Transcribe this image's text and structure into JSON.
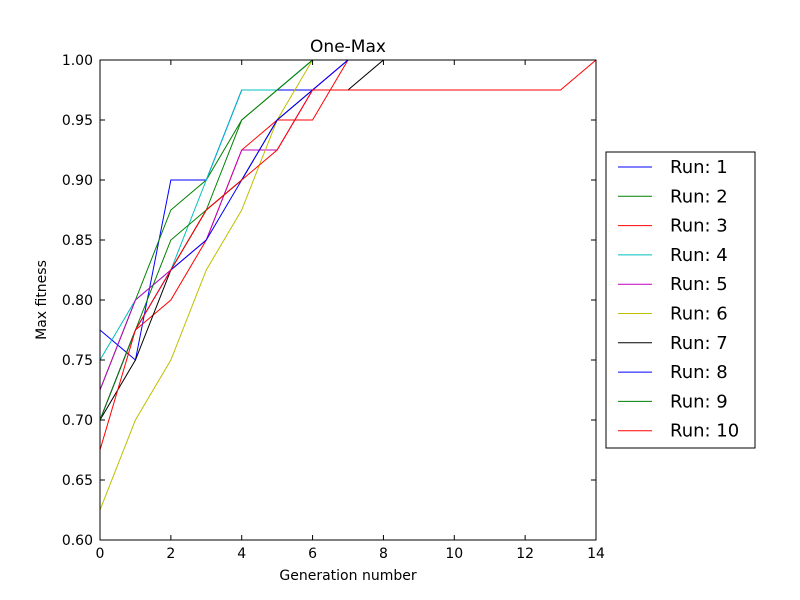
{
  "chart_data": {
    "type": "line",
    "title": "One-Max",
    "xlabel": "Generation number",
    "ylabel": "Max fitness",
    "xlim": [
      0,
      14
    ],
    "ylim": [
      0.6,
      1.0
    ],
    "xticks": [
      0,
      2,
      4,
      6,
      8,
      10,
      12,
      14
    ],
    "xtick_labels": [
      "0",
      "2",
      "4",
      "6",
      "8",
      "10",
      "12",
      "14"
    ],
    "yticks": [
      0.6,
      0.65,
      0.7,
      0.75,
      0.8,
      0.85,
      0.9,
      0.95,
      1.0
    ],
    "ytick_labels": [
      "0.60",
      "0.65",
      "0.70",
      "0.75",
      "0.80",
      "0.85",
      "0.90",
      "0.95",
      "1.00"
    ],
    "grid": false,
    "legend_position": "outside-right",
    "series": [
      {
        "name": "Run: 1",
        "color": "#0000ff",
        "x": [
          0,
          1,
          2,
          3,
          4,
          5,
          6,
          7
        ],
        "y": [
          0.775,
          0.75,
          0.9,
          0.9,
          0.975,
          0.975,
          0.975,
          1.0
        ]
      },
      {
        "name": "Run: 2",
        "color": "#008000",
        "x": [
          0,
          1,
          2,
          3,
          4,
          5,
          6
        ],
        "y": [
          0.725,
          0.8,
          0.875,
          0.9,
          0.95,
          0.975,
          1.0
        ]
      },
      {
        "name": "Run: 3",
        "color": "#ff0000",
        "x": [
          0,
          1,
          2,
          3,
          4,
          5,
          6,
          7
        ],
        "y": [
          0.7,
          0.775,
          0.8,
          0.85,
          0.925,
          0.95,
          0.95,
          1.0
        ]
      },
      {
        "name": "Run: 4",
        "color": "#00bfbf",
        "x": [
          0,
          1,
          2,
          3,
          4,
          5,
          6
        ],
        "y": [
          0.75,
          0.8,
          0.825,
          0.9,
          0.975,
          0.975,
          1.0
        ]
      },
      {
        "name": "Run: 5",
        "color": "#bf00bf",
        "x": [
          0,
          1,
          2,
          3,
          4,
          5,
          6,
          7
        ],
        "y": [
          0.725,
          0.8,
          0.825,
          0.85,
          0.925,
          0.925,
          0.975,
          1.0
        ]
      },
      {
        "name": "Run: 6",
        "color": "#bfbf00",
        "x": [
          0,
          1,
          2,
          3,
          4,
          5,
          6
        ],
        "y": [
          0.625,
          0.7,
          0.75,
          0.825,
          0.875,
          0.95,
          1.0
        ]
      },
      {
        "name": "Run: 7",
        "color": "#000000",
        "x": [
          0,
          1,
          2,
          3,
          4,
          5,
          6,
          7,
          8
        ],
        "y": [
          0.7,
          0.75,
          0.825,
          0.875,
          0.9,
          0.95,
          0.975,
          0.975,
          1.0
        ]
      },
      {
        "name": "Run: 8",
        "color": "#0000ff",
        "x": [
          0,
          1,
          2,
          3,
          4,
          5,
          6,
          7
        ],
        "y": [
          0.7,
          0.775,
          0.825,
          0.85,
          0.9,
          0.95,
          0.975,
          1.0
        ]
      },
      {
        "name": "Run: 9",
        "color": "#008000",
        "x": [
          0,
          1,
          2,
          3,
          4,
          5,
          6
        ],
        "y": [
          0.7,
          0.775,
          0.85,
          0.875,
          0.95,
          0.975,
          1.0
        ]
      },
      {
        "name": "Run: 10",
        "color": "#ff0000",
        "x": [
          0,
          1,
          2,
          3,
          4,
          5,
          6,
          7,
          8,
          9,
          10,
          11,
          12,
          13,
          14
        ],
        "y": [
          0.675,
          0.775,
          0.825,
          0.875,
          0.9,
          0.925,
          0.975,
          0.975,
          0.975,
          0.975,
          0.975,
          0.975,
          0.975,
          0.975,
          1.0
        ]
      }
    ]
  }
}
